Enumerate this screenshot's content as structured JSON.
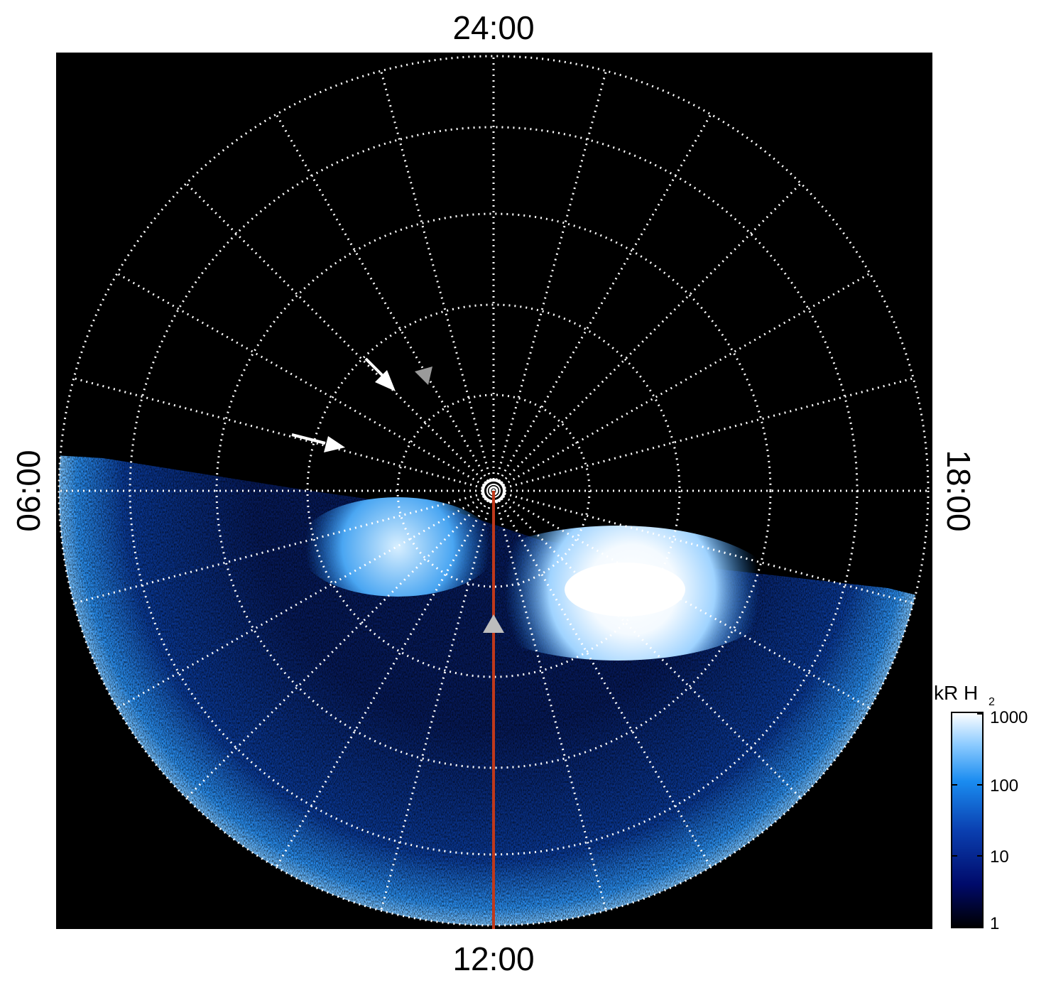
{
  "figure": {
    "local_time_labels": {
      "top": "24:00",
      "bottom": "12:00",
      "left": "06:00",
      "right": "18:00"
    },
    "colorbar": {
      "title": "kR H",
      "title_subscript": "2",
      "ticks": [
        "1000",
        "100",
        "10",
        "1"
      ],
      "scale": "log",
      "range": [
        1,
        1000
      ],
      "colors": [
        "#000000",
        "#000a6a",
        "#0a3fb0",
        "#1a8cf0",
        "#8ccbff",
        "#ffffff"
      ]
    },
    "background_color": "#000000",
    "grid_color": "#ffffff",
    "meridian_line_color": "#c0391b",
    "markers": [
      {
        "name": "white-arrow",
        "color": "#ffffff"
      },
      {
        "name": "white-arrow",
        "color": "#ffffff"
      },
      {
        "name": "gray-triangle",
        "color": "#9a9a9a"
      },
      {
        "name": "gray-triangle",
        "color": "#bdbdbd"
      }
    ]
  }
}
